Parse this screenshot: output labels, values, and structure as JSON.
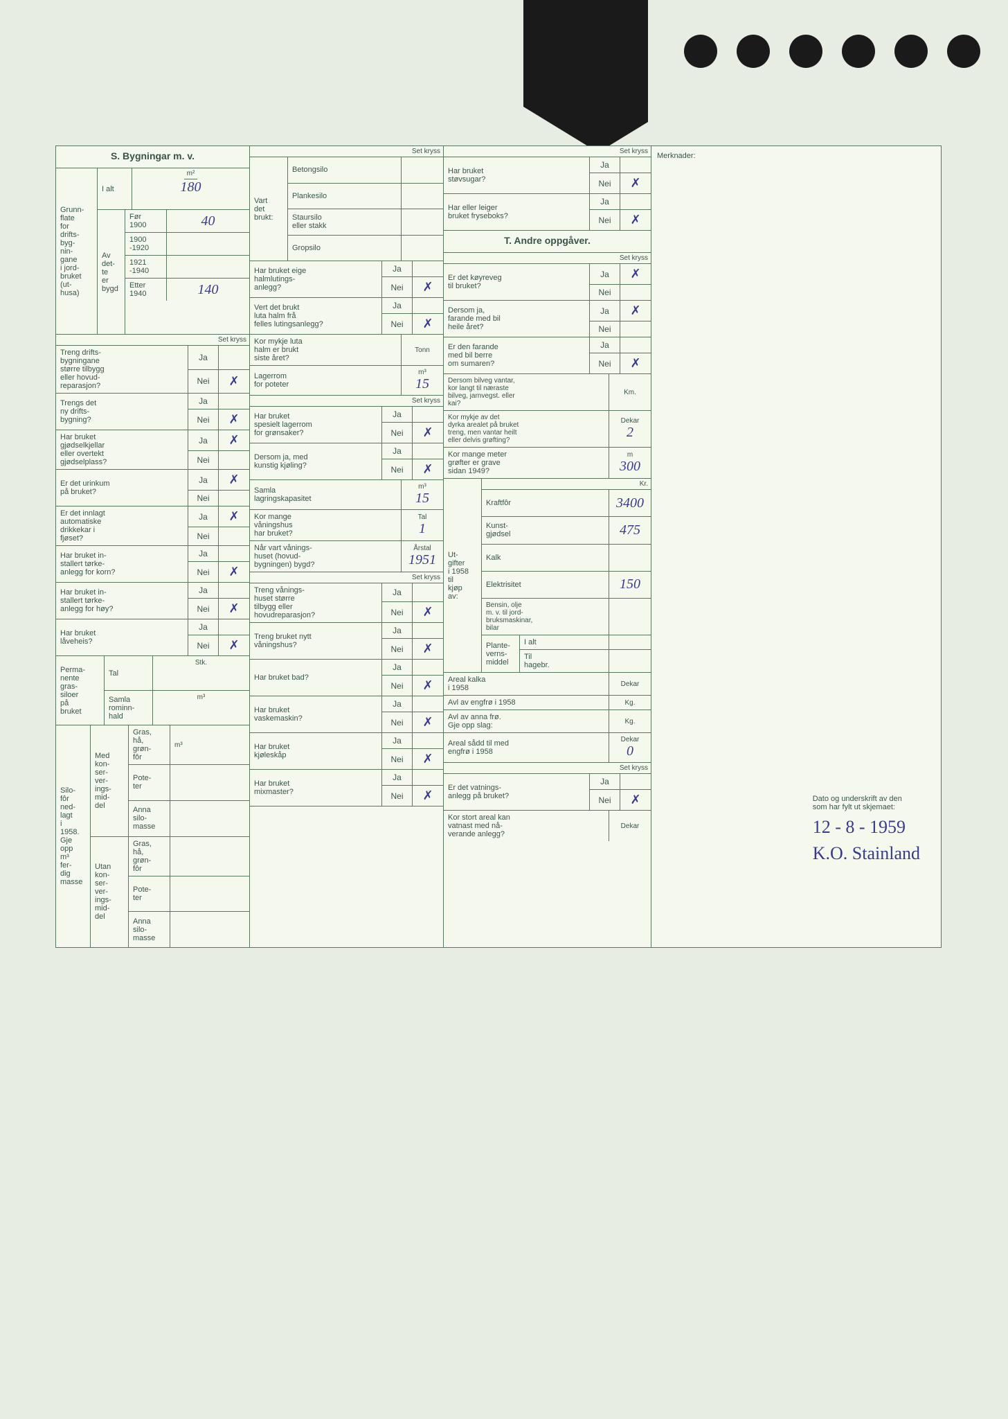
{
  "section_s_title": "S. Bygningar m. v.",
  "section_t_title": "T. Andre oppgåver.",
  "merknader_label": "Merknader:",
  "grunnflate": {
    "label": "Grunn-\nflate\nfor\ndrifts-\nbyg-\nnin-\ngane\ni jord-\nbruket\n(ut-\nhusa)",
    "i_alt_label": "I alt",
    "i_alt_val": "180",
    "av_dette_label": "Av\ndet-\nte\ner\nbygd",
    "for_1900": "Før\n1900",
    "for_1900_val": "40",
    "r1900_1920": "1900\n-1920",
    "r1921_1940": "1921\n-1940",
    "etter_1940": "Etter\n1940",
    "etter_1940_val": "140"
  },
  "yn_rows_c1": [
    {
      "q": "Treng drifts-\nbygningane\nstørre tilbygg\neller hovud-\nreparasjon?",
      "ja": "",
      "nei": "✗"
    },
    {
      "q": "Trengs det\nny drifts-\nbygning?",
      "ja": "",
      "nei": "✗"
    },
    {
      "q": "Har bruket\ngjødselkjellar\neller overtekt\ngjødselplass?",
      "ja": "✗",
      "nei": ""
    },
    {
      "q": "Er det urinkum\npå bruket?",
      "ja": "✗",
      "nei": ""
    },
    {
      "q": "Er det innlagt\nautomatiske\ndrikkekar i\nfjøset?",
      "ja": "✗",
      "nei": ""
    },
    {
      "q": "Har bruket in-\nstallert tørke-\nanlegg for korn?",
      "ja": "",
      "nei": "✗"
    },
    {
      "q": "Har bruket in-\nstallert tørke-\nanlegg for høy?",
      "ja": "",
      "nei": "✗"
    },
    {
      "q": "Har bruket\nlåveheis?",
      "ja": "",
      "nei": "✗"
    }
  ],
  "perm_silo": {
    "label": "Perma-\nnente\ngras-\nsiloer\npå\nbruket",
    "tal_label": "Tal",
    "samla_label": "Samla\nrominn-\nhald",
    "stk": "Stk.",
    "m3": "m³"
  },
  "silofor": {
    "label": "Silo-\nfôr\nned-\nlagt\ni\n1958.\nGje\nopp\nm³\nfer-\ndig\nmasse",
    "med": "Med\nkon-\nser-\nver-\nings-\nmid-\ndel",
    "utan": "Utan\nkon-\nser-\nver-\nings-\nmid-\ndel",
    "gras": "Gras,\nhå,\ngrøn-\nfôr",
    "poteter": "Pote-\nter",
    "anna": "Anna\nsilo-\nmasse"
  },
  "col2_top": {
    "vart_brukt": "Vart\ndet\nbrukt:",
    "betong": "Betongsilo",
    "planke": "Plankesilo",
    "staur": "Staursilo\neller stakk",
    "grop": "Gropsilo",
    "set_kryss": "Set kryss"
  },
  "yn_rows_c2": [
    {
      "q": "Har bruket eige\nhalmlutings-\nanlegg?",
      "ja": "",
      "nei": "✗"
    },
    {
      "q": "Vert det brukt\nluta halm frå\nfelles lutingsanlegg?",
      "ja": "",
      "nei": "✗"
    }
  ],
  "tonn_row": {
    "q": "Kor mykje luta\nhalm er brukt\nsiste året?",
    "unit": "Tonn",
    "val": ""
  },
  "lager_pot": {
    "q": "Lagerrom\nfor poteter",
    "unit": "m³",
    "val": "15"
  },
  "yn_rows_c2b": [
    {
      "q": "Har bruket\nspesielt lagerrom\nfor grønsaker?",
      "ja": "",
      "nei": "✗"
    },
    {
      "q": "Dersom ja, med\nkunstig kjøling?",
      "ja": "",
      "nei": "✗"
    }
  ],
  "samla_lag": {
    "q": "Samla\nlagringskapasitet",
    "unit": "m³",
    "val": "15"
  },
  "vaning_tal": {
    "q": "Kor mange\nvåningshus\nhar bruket?",
    "unit": "Tal",
    "val": "1"
  },
  "vaning_aar": {
    "q": "Når vart vånings-\nhuset (hovud-\nbygningen) bygd?",
    "unit": "Årstal",
    "val": "1951"
  },
  "yn_rows_c2c": [
    {
      "q": "Treng vånings-\nhuset større\ntilbygg eller\nhovudreparasjon?",
      "ja": "",
      "nei": "✗"
    },
    {
      "q": "Treng bruket nytt\nvåningshus?",
      "ja": "",
      "nei": "✗"
    },
    {
      "q": "Har bruket bad?",
      "ja": "",
      "nei": "✗"
    },
    {
      "q": "Har bruket\nvaskemaskin?",
      "ja": "",
      "nei": "✗"
    },
    {
      "q": "Har bruket\nkjøleskåp",
      "ja": "",
      "nei": "✗"
    },
    {
      "q": "Har bruket\nmixmaster?",
      "ja": "",
      "nei": "✗"
    }
  ],
  "yn_rows_c3": [
    {
      "q": "Har bruket\nstøvsugar?",
      "ja": "",
      "nei": "✗"
    },
    {
      "q": "Har eller leiger\nbruket fryseboks?",
      "ja": "",
      "nei": "✗"
    }
  ],
  "yn_rows_c3b": [
    {
      "q": "Er det køyreveg\ntil bruket?",
      "ja": "✗",
      "nei": ""
    },
    {
      "q": "Dersom ja,\nfarande med bil\nheile året?",
      "ja": "✗",
      "nei": ""
    },
    {
      "q": "Er den farande\nmed bil berre\nom sumaren?",
      "ja": "",
      "nei": "✗"
    }
  ],
  "km_row": {
    "q": "Dersom bilveg vantar,\nkor langt til næraste\nbilveg, jarnvegst. eller\nkai?",
    "unit": "Km.",
    "val": ""
  },
  "dekar_groft": {
    "q": "Kor mykje av det\ndyrka arealet på bruket\ntreng, men vantar heilt\neller delvis grøfting?",
    "unit": "Dekar",
    "val": "2"
  },
  "meter_groft": {
    "q": "Kor mange meter\ngrøfter er grave\nsidan 1949?",
    "unit": "m",
    "val": "300"
  },
  "utgifter": {
    "label": "Ut-\ngifter\ni 1958\ntil\nkjøp\nav:",
    "kraftfor": "Kraftfôr",
    "kraftfor_val": "3400",
    "kunstg": "Kunst-\ngjødsel",
    "kunstg_val": "475",
    "kalk": "Kalk",
    "kalk_val": "",
    "elekt": "Elektrisitet",
    "elekt_val": "150",
    "bensin": "Bensin, olje\nm. v. til jord-\nbruksmaskinar,\nbilar",
    "bensin_val": "",
    "plante": "Plante-\nverns-\nmiddel",
    "ialt": "I alt",
    "hagebr": "Til\nhagebr.",
    "kr": "Kr."
  },
  "areal_kalka": {
    "q": "Areal kalka\ni 1958",
    "unit": "Dekar",
    "val": ""
  },
  "engfro": {
    "q": "Avl av engfrø i 1958",
    "unit": "Kg.",
    "val": ""
  },
  "annafro": {
    "q": "Avl av anna frø.\nGje opp slag:",
    "unit": "Kg.",
    "val": ""
  },
  "areal_sadd": {
    "q": "Areal sådd til med\nengfrø i 1958",
    "unit": "Dekar",
    "val": "0"
  },
  "vatning": {
    "q": "Er det vatnings-\nanlegg på bruket?",
    "ja": "",
    "nei": "✗"
  },
  "vatnas": {
    "q": "Kor stort areal kan\nvatnast med nå-\nverande anlegg?",
    "unit": "Dekar",
    "val": ""
  },
  "sig_label": "Dato og underskrift av den\nsom har fylt ut skjemaet:",
  "sig_date": "12 - 8 - 1959",
  "sig_name": "K.O. Stainland",
  "ja": "Ja",
  "nei": "Nei",
  "set_kryss": "Set kryss",
  "m2": "m²",
  "m3": "m³"
}
